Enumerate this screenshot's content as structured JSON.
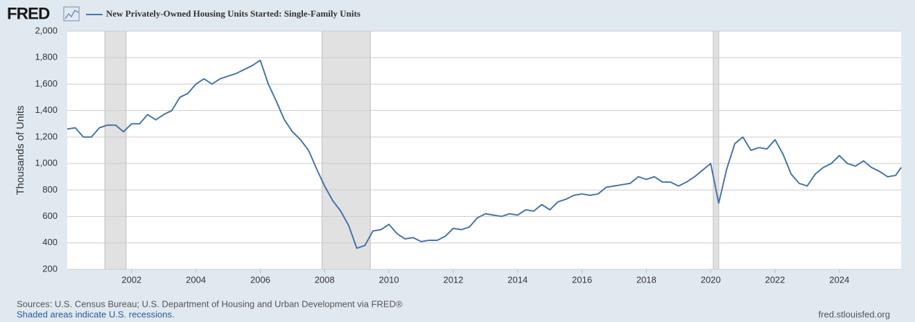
{
  "chart_data": {
    "type": "line",
    "logo": "FRED",
    "title": "New Privately-Owned Housing Units Started: Single-Family Units",
    "y_label": "Thousands of Units",
    "source": "Sources: U.S. Census Bureau; U.S. Department of Housing and Urban Development via FRED®",
    "note": "Shaded areas indicate U.S. recessions.",
    "site": "fred.stlouisfed.org",
    "grid": true,
    "recessions": [
      [
        2001.17,
        2001.83
      ],
      [
        2007.92,
        2009.42
      ],
      [
        2020.08,
        2020.25
      ]
    ],
    "xlim": [
      2000,
      2025.92
    ],
    "xticks": [
      2002,
      2004,
      2006,
      2008,
      2010,
      2012,
      2014,
      2016,
      2018,
      2020,
      2022,
      2024
    ],
    "ylim": [
      200,
      2000
    ],
    "yticks": [
      200,
      400,
      600,
      800,
      {
        "value": 1000,
        "label": "1,000"
      },
      {
        "value": 1200,
        "label": "1,200"
      },
      {
        "value": 1400,
        "label": "1,400"
      },
      {
        "value": 1600,
        "label": "1,600"
      },
      {
        "value": 1800,
        "label": "1,800"
      },
      {
        "value": 2000,
        "label": "2,000"
      }
    ],
    "x": [
      2000,
      2000.25,
      2000.5,
      2000.75,
      2001,
      2001.25,
      2001.5,
      2001.75,
      2002,
      2002.25,
      2002.5,
      2002.75,
      2003,
      2003.25,
      2003.5,
      2003.75,
      2004,
      2004.25,
      2004.5,
      2004.75,
      2005,
      2005.25,
      2005.5,
      2005.75,
      2006,
      2006.25,
      2006.5,
      2006.75,
      2007,
      2007.25,
      2007.5,
      2007.75,
      2008,
      2008.25,
      2008.5,
      2008.75,
      2009,
      2009.25,
      2009.5,
      2009.75,
      2010,
      2010.25,
      2010.5,
      2010.75,
      2011,
      2011.25,
      2011.5,
      2011.75,
      2012,
      2012.25,
      2012.5,
      2012.75,
      2013,
      2013.25,
      2013.5,
      2013.75,
      2014,
      2014.25,
      2014.5,
      2014.75,
      2015,
      2015.25,
      2015.5,
      2015.75,
      2016,
      2016.25,
      2016.5,
      2016.75,
      2017,
      2017.25,
      2017.5,
      2017.75,
      2018,
      2018.25,
      2018.5,
      2018.75,
      2019,
      2019.25,
      2019.5,
      2019.75,
      2020,
      2020.25,
      2020.5,
      2020.75,
      2021,
      2021.25,
      2021.5,
      2021.75,
      2022,
      2022.25,
      2022.5,
      2022.75,
      2023,
      2023.25,
      2023.5,
      2023.75,
      2024,
      2024.25,
      2024.5,
      2024.75,
      2025,
      2025.25,
      2025.5,
      2025.75,
      2025.92
    ],
    "series": [
      {
        "name": "New Privately-Owned Housing Units Started: Single-Family Units",
        "color": "#4572a7",
        "values": [
          1260,
          1270,
          1200,
          1200,
          1270,
          1290,
          1290,
          1240,
          1300,
          1300,
          1370,
          1330,
          1370,
          1400,
          1500,
          1530,
          1600,
          1640,
          1600,
          1640,
          1660,
          1680,
          1710,
          1740,
          1780,
          1600,
          1470,
          1330,
          1240,
          1180,
          1100,
          960,
          830,
          720,
          640,
          530,
          360,
          380,
          490,
          500,
          540,
          470,
          430,
          440,
          410,
          420,
          420,
          450,
          510,
          500,
          520,
          590,
          620,
          610,
          600,
          620,
          610,
          650,
          640,
          690,
          650,
          710,
          730,
          760,
          770,
          760,
          770,
          820,
          830,
          840,
          850,
          900,
          880,
          900,
          860,
          860,
          830,
          860,
          900,
          950,
          1000,
          700,
          960,
          1150,
          1200,
          1100,
          1120,
          1110,
          1180,
          1070,
          920,
          850,
          830,
          920,
          970,
          1000,
          1060,
          1000,
          980,
          1020,
          970,
          940,
          900,
          910,
          970
        ]
      }
    ]
  }
}
